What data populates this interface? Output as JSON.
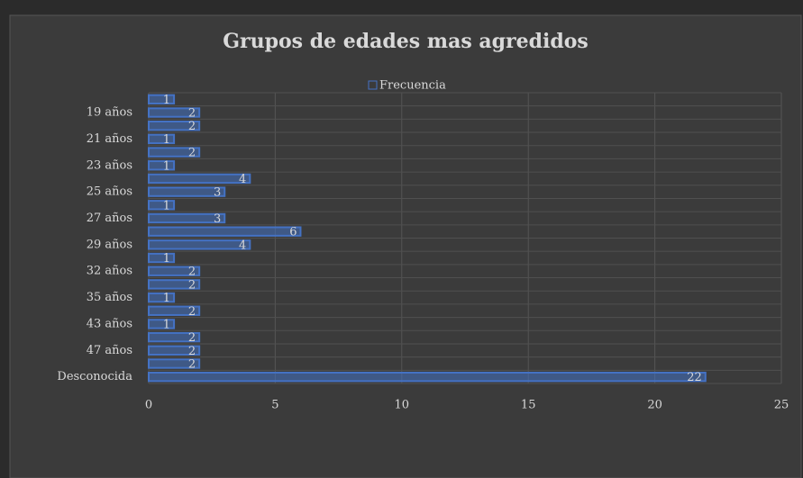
{
  "chart_data": {
    "type": "bar",
    "orientation": "horizontal",
    "title": "Grupos de edades mas agredidos",
    "categories": [
      null,
      "19 años",
      null,
      "21 años",
      null,
      "23 años",
      null,
      "25 años",
      null,
      "27 años",
      null,
      "29 años",
      null,
      "32 años",
      null,
      "35 años",
      null,
      "43 años",
      null,
      "47 años",
      null,
      "Desconocida"
    ],
    "series": [
      {
        "name": "Frecuencia",
        "color": "#4472c4",
        "values": [
          1,
          2,
          2,
          1,
          2,
          1,
          4,
          3,
          1,
          3,
          6,
          4,
          1,
          2,
          2,
          1,
          2,
          1,
          2,
          2,
          2,
          22
        ]
      }
    ],
    "xlim": [
      0,
      25
    ],
    "xticks": [
      0,
      5,
      10,
      15,
      20,
      25
    ],
    "grid": true,
    "legend": "top"
  }
}
